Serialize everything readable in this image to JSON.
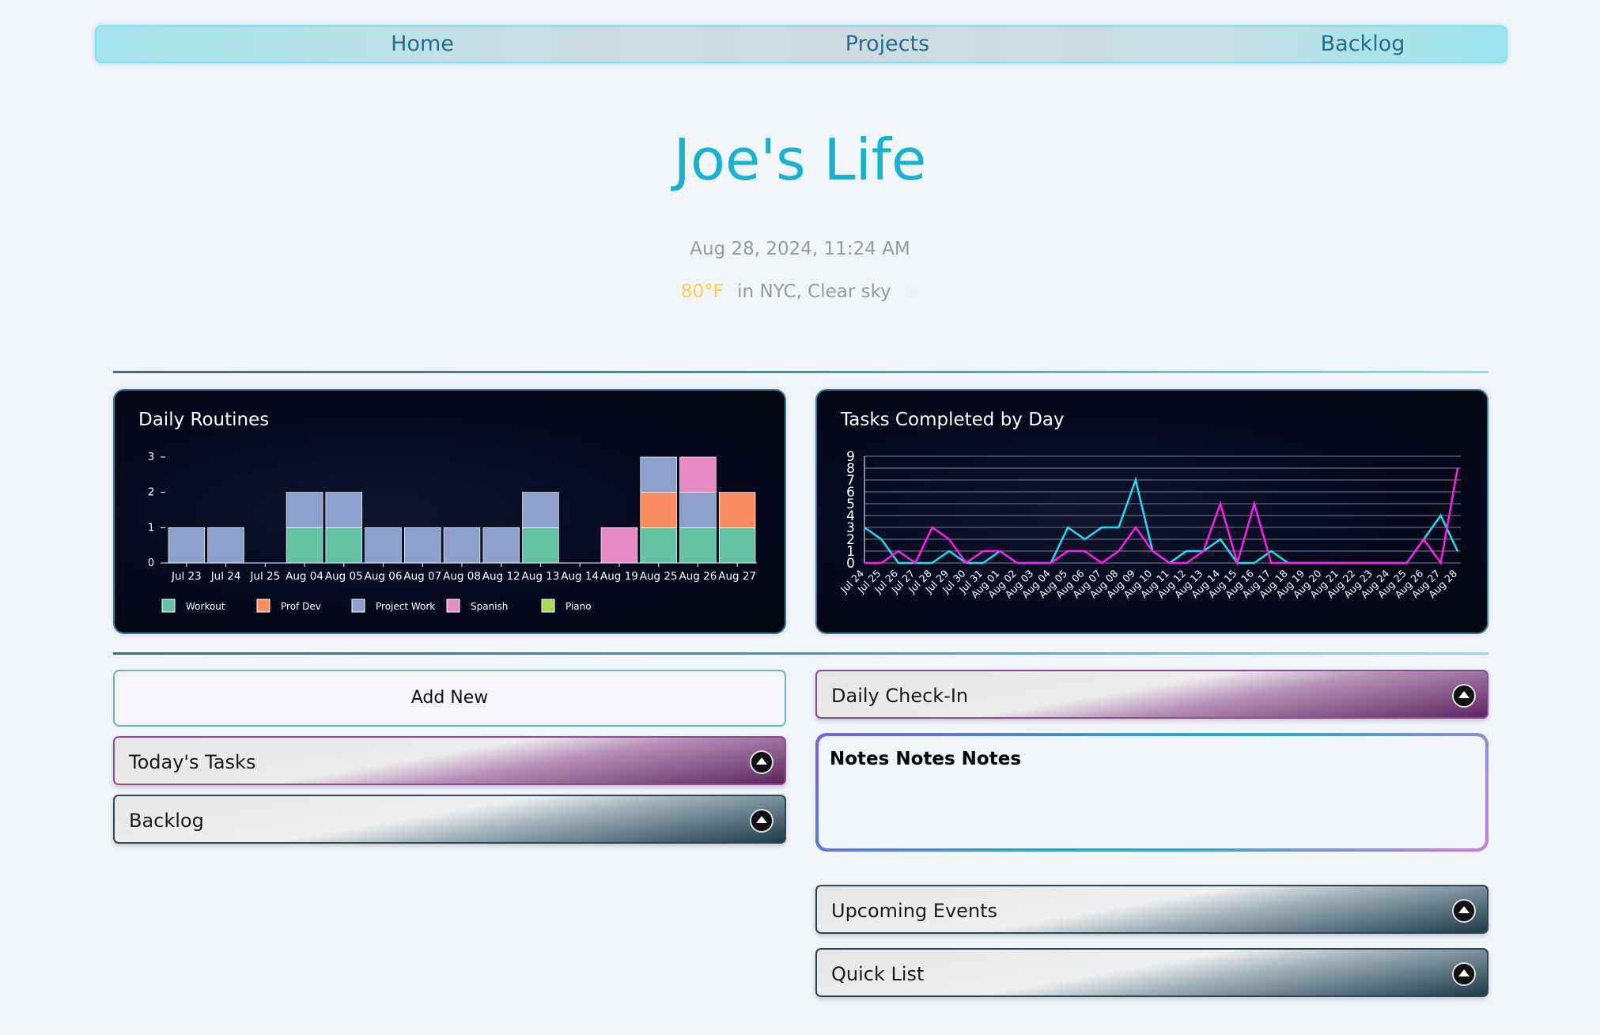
{
  "nav": {
    "home": "Home",
    "projects": "Projects",
    "backlog": "Backlog"
  },
  "header": {
    "title": "Joe's Life",
    "datetime": "Aug 28, 2024, 11:24 AM",
    "temperature": "80°F",
    "location_text": "in NYC, Clear sky",
    "weather_icon": "sun-icon"
  },
  "routines_chart": {
    "title": "Daily Routines",
    "legend": [
      "Workout",
      "Prof Dev",
      "Project Work",
      "Spanish",
      "Piano"
    ]
  },
  "tasks_chart": {
    "title": "Tasks Completed by Day"
  },
  "chart_data": [
    {
      "type": "bar",
      "stacked": true,
      "title": "Daily Routines",
      "categories": [
        "Jul 23",
        "Jul 24",
        "Jul 25",
        "Aug 04",
        "Aug 05",
        "Aug 06",
        "Aug 07",
        "Aug 08",
        "Aug 12",
        "Aug 13",
        "Aug 14",
        "Aug 19",
        "Aug 25",
        "Aug 26",
        "Aug 27"
      ],
      "series": [
        {
          "name": "Workout",
          "color": "#66c2a5",
          "values": [
            0,
            0,
            0,
            1,
            1,
            0,
            0,
            0,
            0,
            1,
            0,
            0,
            1,
            1,
            1
          ]
        },
        {
          "name": "Prof Dev",
          "color": "#fc8d62",
          "values": [
            0,
            0,
            0,
            0,
            0,
            0,
            0,
            0,
            0,
            0,
            0,
            0,
            1,
            0,
            1
          ]
        },
        {
          "name": "Project Work",
          "color": "#8da0cb",
          "values": [
            1,
            1,
            0,
            1,
            1,
            1,
            1,
            1,
            1,
            1,
            0,
            0,
            1,
            1,
            0
          ]
        },
        {
          "name": "Spanish",
          "color": "#e78ac3",
          "values": [
            0,
            0,
            0,
            0,
            0,
            0,
            0,
            0,
            0,
            0,
            0,
            1,
            0,
            1,
            0
          ]
        },
        {
          "name": "Piano",
          "color": "#a6d854",
          "values": [
            0,
            0,
            0,
            0,
            0,
            0,
            0,
            0,
            0,
            0,
            0,
            0,
            0,
            0,
            0
          ]
        }
      ],
      "yticks": [
        0,
        1,
        2,
        3
      ],
      "ylim": [
        0,
        3
      ],
      "legend_position": "bottom"
    },
    {
      "type": "line",
      "title": "Tasks Completed by Day",
      "x": [
        "Jul 24",
        "Jul 25",
        "Jul 26",
        "Jul 27",
        "Jul 28",
        "Jul 29",
        "Jul 30",
        "Jul 31",
        "Aug 01",
        "Aug 02",
        "Aug 03",
        "Aug 04",
        "Aug 05",
        "Aug 06",
        "Aug 07",
        "Aug 08",
        "Aug 09",
        "Aug 10",
        "Aug 11",
        "Aug 12",
        "Aug 13",
        "Aug 14",
        "Aug 15",
        "Aug 16",
        "Aug 17",
        "Aug 18",
        "Aug 19",
        "Aug 20",
        "Aug 21",
        "Aug 22",
        "Aug 23",
        "Aug 24",
        "Aug 25",
        "Aug 26",
        "Aug 27",
        "Aug 28"
      ],
      "series": [
        {
          "color": "#19e0f0",
          "values": [
            3,
            2,
            0,
            0,
            0,
            1,
            0,
            0,
            1,
            0,
            0,
            0,
            3,
            2,
            3,
            3,
            7,
            1,
            0,
            1,
            1,
            2,
            0,
            0,
            1,
            0,
            0,
            0,
            0,
            0,
            0,
            0,
            0,
            2,
            4,
            1
          ]
        },
        {
          "color": "#ff1ee6",
          "values": [
            0,
            0,
            1,
            0,
            3,
            2,
            0,
            1,
            1,
            0,
            0,
            0,
            1,
            1,
            0,
            1,
            3,
            1,
            0,
            0,
            1,
            5,
            0,
            5,
            0,
            0,
            0,
            0,
            0,
            0,
            0,
            0,
            0,
            2,
            0,
            8
          ]
        }
      ],
      "yticks": [
        0,
        1,
        2,
        3,
        4,
        5,
        6,
        7,
        8,
        9
      ],
      "ylim": [
        0,
        9
      ],
      "grid": true
    }
  ],
  "actions": {
    "add_new": "Add New"
  },
  "accordions": {
    "todays_tasks": "Today's Tasks",
    "backlog": "Backlog",
    "daily_checkin": "Daily Check-In",
    "upcoming_events": "Upcoming Events",
    "quick_list": "Quick List"
  },
  "notes": {
    "text": "Notes Notes Notes"
  }
}
